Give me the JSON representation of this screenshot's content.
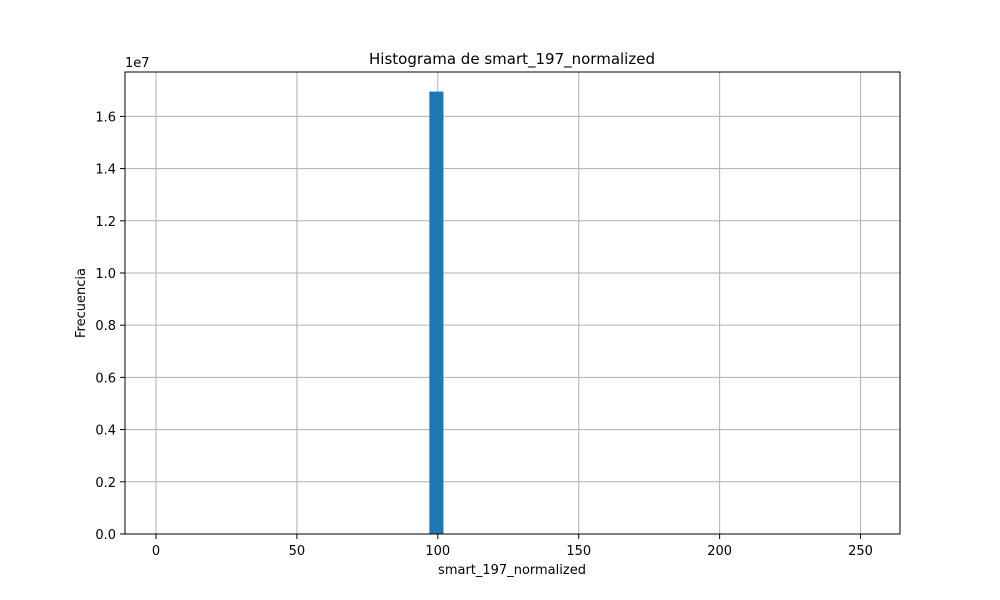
{
  "chart_data": {
    "type": "bar",
    "title": "Histograma de smart_197_normalized",
    "xlabel": "smart_197_normalized",
    "ylabel": "Frecuencia",
    "y_offset_label": "1e7",
    "xlim": [
      -11,
      264
    ],
    "ylim": [
      0,
      17700000
    ],
    "x_ticks": [
      0,
      50,
      100,
      150,
      200,
      250
    ],
    "x_tick_labels": [
      "0",
      "50",
      "100",
      "150",
      "200",
      "250"
    ],
    "y_ticks": [
      0,
      2000000,
      4000000,
      6000000,
      8000000,
      10000000,
      12000000,
      14000000,
      16000000
    ],
    "y_tick_labels": [
      "0.0",
      "0.2",
      "0.4",
      "0.6",
      "0.8",
      "1.0",
      "1.2",
      "1.4",
      "1.6"
    ],
    "grid": true,
    "bar_color": "#1f77b4",
    "grid_color": "#b0b0b0",
    "bins": [
      {
        "x0": 97.0,
        "x1": 102.0,
        "value": 16950000
      }
    ]
  }
}
